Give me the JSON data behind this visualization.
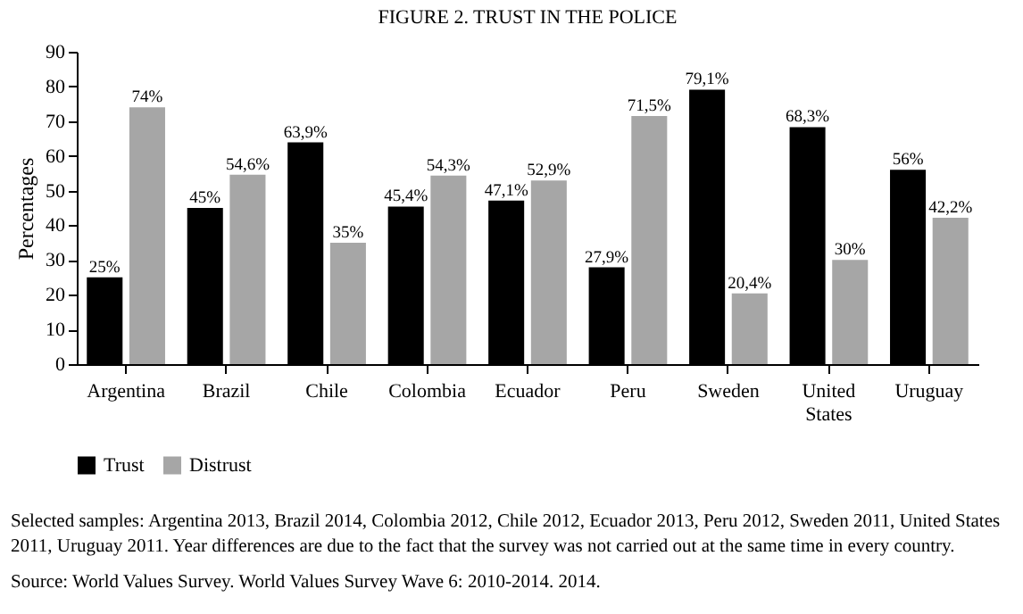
{
  "chart_data": {
    "type": "bar",
    "title": "FIGURE 2. TRUST IN THE POLICE",
    "ylabel": "Percentages",
    "categories": [
      "Argentina",
      "Brazil",
      "Chile",
      "Colombia",
      "Ecuador",
      "Peru",
      "Sweden",
      "United States",
      "Uruguay"
    ],
    "series": [
      {
        "name": "Trust",
        "color": "#000000",
        "values": [
          25,
          45,
          63.9,
          45.4,
          47.1,
          27.9,
          79.1,
          68.3,
          56
        ],
        "value_labels": [
          "25%",
          "45%",
          "63,9%",
          "45,4%",
          "47,1%",
          "27,9%",
          "79,1%",
          "68,3%",
          "56%"
        ]
      },
      {
        "name": "Distrust",
        "color": "#a6a6a6",
        "values": [
          74,
          54.6,
          35,
          54.3,
          52.9,
          71.5,
          20.4,
          30,
          42.2
        ],
        "value_labels": [
          "74%",
          "54,6%",
          "35%",
          "54,3%",
          "52,9%",
          "71,5%",
          "20,4%",
          "30%",
          "42,2%"
        ]
      }
    ],
    "ylim": [
      0,
      90
    ],
    "yticks": [
      0,
      10,
      20,
      30,
      40,
      50,
      60,
      70,
      80,
      90
    ],
    "grid": false,
    "legend": "bottom",
    "annotations": [
      "Selected samples: Argentina 2013, Brazil 2014, Colombia 2012, Chile 2012, Ecuador 2013, Peru 2012, Sweden 2011, United States 2011, Uruguay 2011. Year differences are due to the fact that the survey was not carried out at the same time in every country.",
      "Source: World Values Survey. World Values Survey Wave 6: 2010-2014. 2014."
    ]
  }
}
